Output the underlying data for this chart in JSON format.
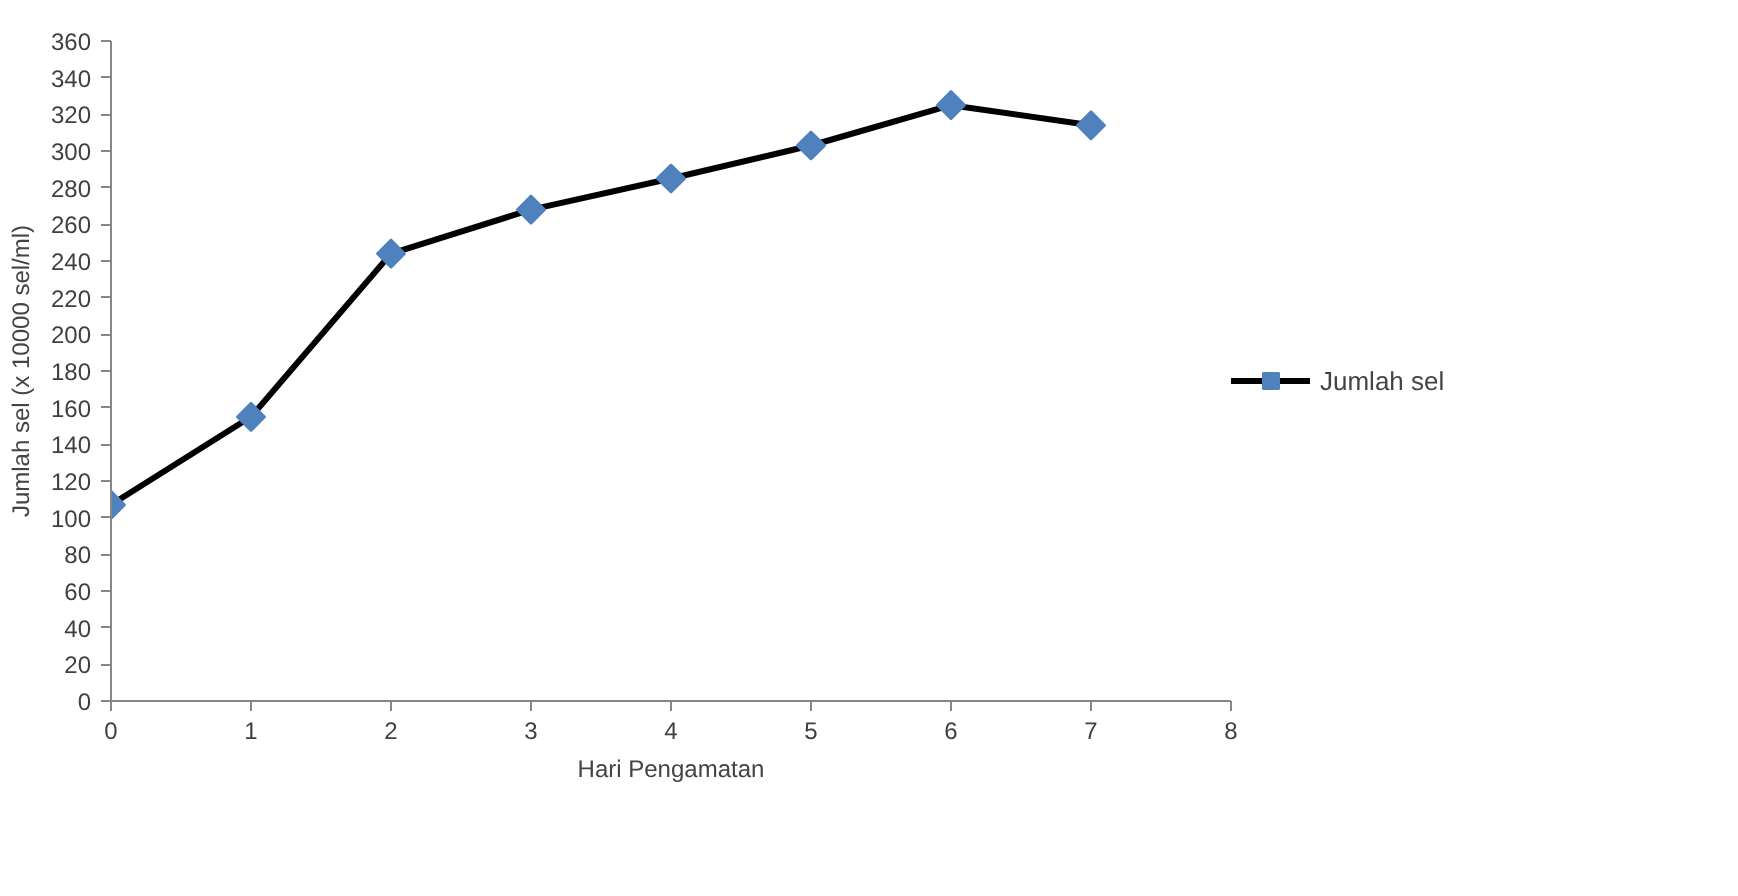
{
  "chart_data": {
    "type": "line",
    "xlabel": "Hari Pengamatan",
    "ylabel": "Jumlah sel (x 10000 sel/ml)",
    "x": [
      0,
      1,
      2,
      3,
      4,
      5,
      6,
      7
    ],
    "series": [
      {
        "name": "Jumlah sel",
        "color": "#000000",
        "colors": [
          "#4f81bd",
          "#4f81bd",
          "#4f81bd",
          "#4f81bd",
          "#4f81bd",
          "#4f81bd",
          "#4f81bd",
          "#4f81bd"
        ],
        "values": [
          107,
          155,
          244,
          268,
          285,
          303,
          325,
          314
        ]
      }
    ],
    "xlim": [
      0,
      8
    ],
    "xticks": [
      0,
      1,
      2,
      3,
      4,
      5,
      6,
      7,
      8
    ],
    "ylim": [
      0,
      360
    ],
    "yticks": [
      0,
      20,
      40,
      60,
      80,
      100,
      120,
      140,
      160,
      180,
      200,
      220,
      240,
      260,
      280,
      300,
      320,
      340,
      360
    ],
    "grid": false,
    "legend": "right",
    "marker": "diamond",
    "line_style": "solid"
  }
}
